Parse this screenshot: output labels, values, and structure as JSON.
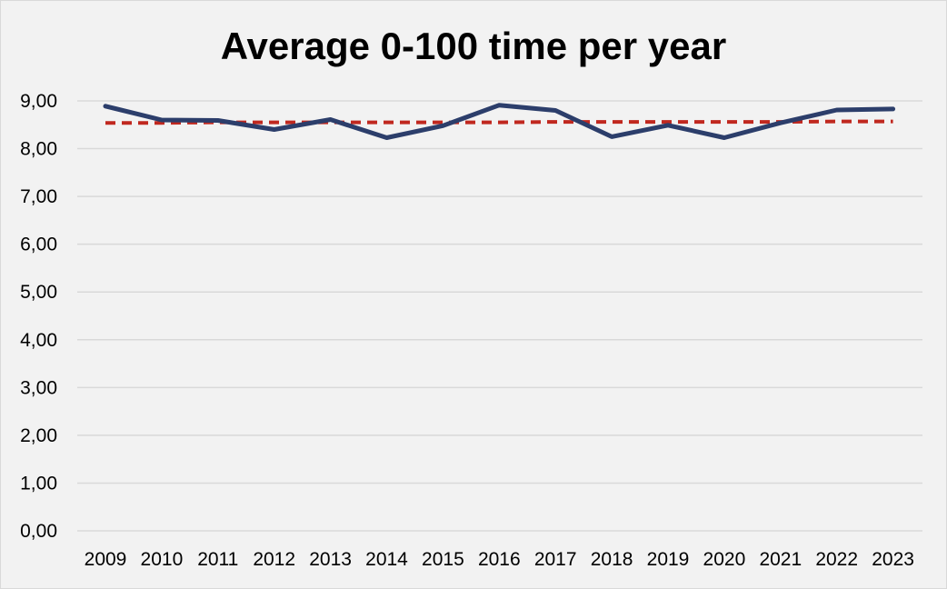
{
  "chart_data": {
    "type": "line",
    "title": "Average 0-100 time per year",
    "xlabel": "",
    "ylabel": "",
    "categories": [
      "2009",
      "2010",
      "2011",
      "2012",
      "2013",
      "2014",
      "2015",
      "2016",
      "2017",
      "2018",
      "2019",
      "2020",
      "2021",
      "2022",
      "2023"
    ],
    "ylim": [
      0,
      9
    ],
    "yticks": [
      "0,00",
      "1,00",
      "2,00",
      "3,00",
      "4,00",
      "5,00",
      "6,00",
      "7,00",
      "8,00",
      "9,00"
    ],
    "grid": true,
    "legend": "none",
    "series": [
      {
        "style": "solid",
        "color": "#2c3e6b",
        "values": [
          8.89,
          8.6,
          8.59,
          8.4,
          8.61,
          8.23,
          8.48,
          8.91,
          8.8,
          8.25,
          8.49,
          8.23,
          8.54,
          8.81,
          8.83
        ]
      },
      {
        "style": "dashed",
        "color": "#c0281f",
        "values": [
          8.54,
          8.54,
          8.55,
          8.55,
          8.55,
          8.55,
          8.55,
          8.55,
          8.56,
          8.56,
          8.56,
          8.56,
          8.56,
          8.57,
          8.57
        ]
      }
    ]
  }
}
